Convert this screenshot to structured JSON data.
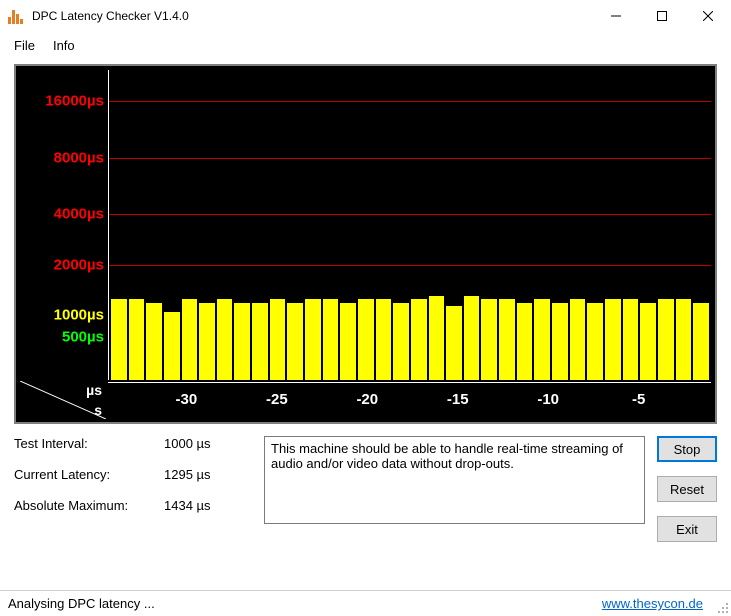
{
  "window": {
    "title": "DPC Latency Checker V1.4.0",
    "icon_bar_color": "#e67e22"
  },
  "menu": {
    "file": "File",
    "info": "Info"
  },
  "chart": {
    "type": "bar",
    "background_color": "#000000",
    "axis_color": "#ffffff",
    "gridline_color": "#c00000",
    "bar_color": "#ffff00",
    "yticks": [
      {
        "label": "16000µs",
        "pos_pct": 10,
        "gridline": true,
        "color": "#ff0000"
      },
      {
        "label": "8000µs",
        "pos_pct": 28,
        "gridline": true,
        "color": "#ff0000"
      },
      {
        "label": "4000µs",
        "pos_pct": 46,
        "gridline": true,
        "color": "#ff0000"
      },
      {
        "label": "2000µs",
        "pos_pct": 62,
        "gridline": true,
        "color": "#ff0000"
      },
      {
        "label": "1000µs",
        "pos_pct": 78,
        "gridline": false,
        "color": "#ffff00"
      },
      {
        "label": "500µs",
        "pos_pct": 85,
        "gridline": false,
        "color": "#00ff00"
      }
    ],
    "xticks": [
      {
        "label": "-30",
        "pos_pct": 13
      },
      {
        "label": "-25",
        "pos_pct": 28
      },
      {
        "label": "-20",
        "pos_pct": 43
      },
      {
        "label": "-15",
        "pos_pct": 58
      },
      {
        "label": "-10",
        "pos_pct": 73
      },
      {
        "label": "-5",
        "pos_pct": 88
      }
    ],
    "corner": {
      "top": "µs",
      "bottom": "s"
    },
    "bar_heights_pct": [
      26,
      26,
      25,
      22,
      26,
      25,
      26,
      25,
      25,
      26,
      25,
      26,
      26,
      25,
      26,
      26,
      25,
      26,
      27,
      24,
      27,
      26,
      26,
      25,
      26,
      25,
      26,
      25,
      26,
      26,
      25,
      26,
      26,
      25
    ]
  },
  "stats": {
    "interval_label": "Test Interval:",
    "interval_value": "1000 µs",
    "current_label": "Current Latency:",
    "current_value": "1295 µs",
    "max_label": "Absolute Maximum:",
    "max_value": "1434 µs"
  },
  "message": "This machine should be able to handle real-time streaming of audio and/or video data without drop-outs.",
  "buttons": {
    "stop": "Stop",
    "reset": "Reset",
    "exit": "Exit"
  },
  "status": {
    "text": "Analysing DPC latency ...",
    "link": "www.thesycon.de"
  }
}
